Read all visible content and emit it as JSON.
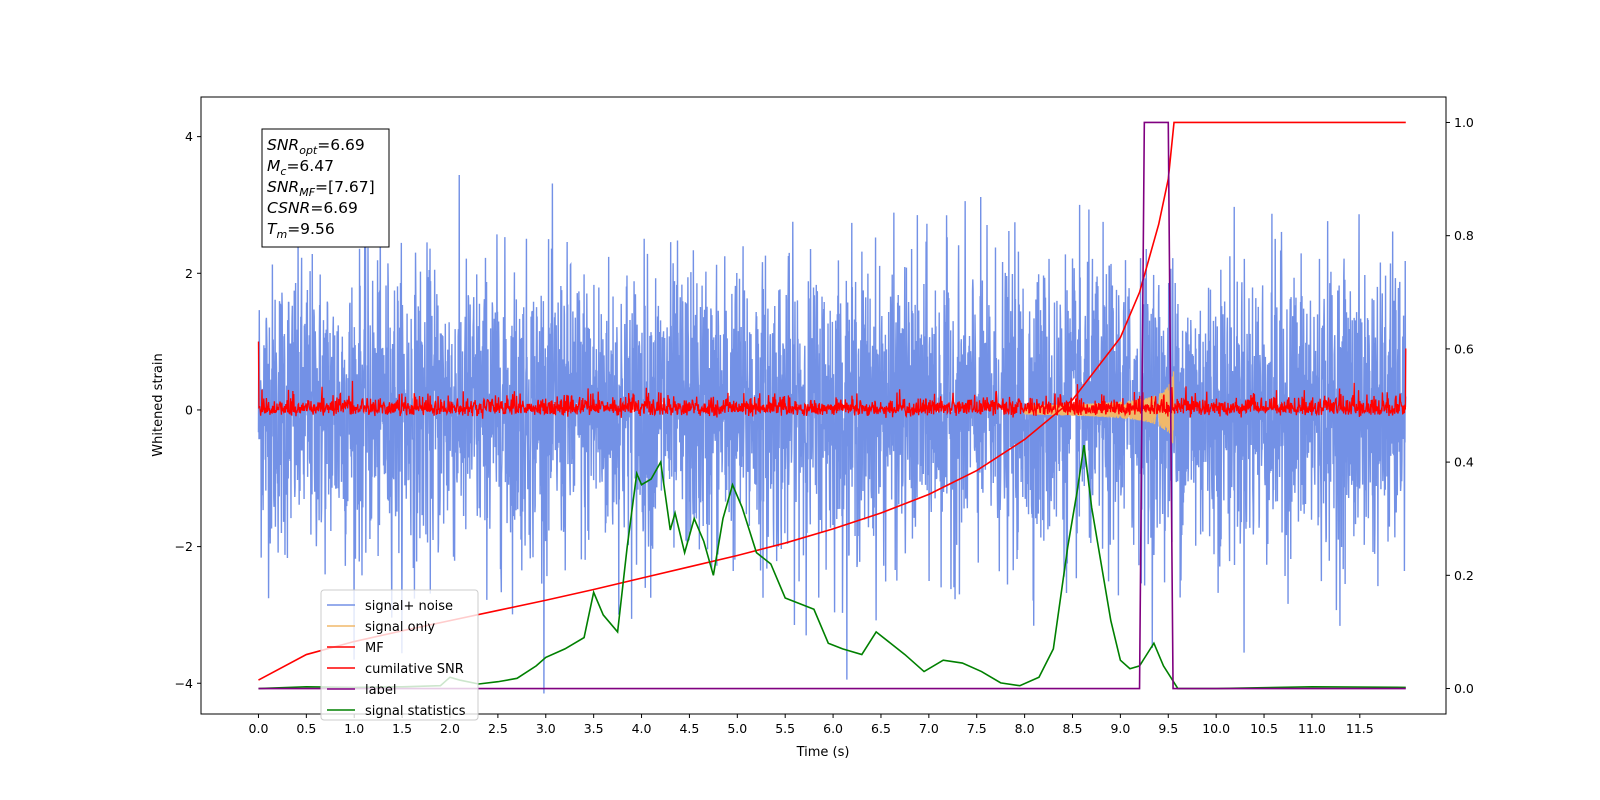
{
  "chart_data": {
    "type": "line",
    "xlabel": "Time (s)",
    "ylabel": "Whitened strain",
    "xlim": [
      -0.6,
      12.4
    ],
    "ylim": [
      -4.45,
      4.58
    ],
    "y2lim": [
      -0.045,
      1.045
    ],
    "xticks": [
      "0.0",
      "0.5",
      "1.0",
      "1.5",
      "2.0",
      "2.5",
      "3.0",
      "3.5",
      "4.0",
      "4.5",
      "5.0",
      "5.5",
      "6.0",
      "6.5",
      "7.0",
      "7.5",
      "8.0",
      "8.5",
      "9.0",
      "9.5",
      "10.0",
      "10.5",
      "11.0",
      "11.5"
    ],
    "yticks": [
      "−4",
      "−2",
      "0",
      "2",
      "4"
    ],
    "y2ticks": [
      "0.0",
      "0.2",
      "0.4",
      "0.6",
      "0.8",
      "1.0"
    ],
    "grid": false,
    "legend_position": "lower-left",
    "annotation": {
      "lines": [
        {
          "base": "SNR",
          "sub": "opt",
          "value": "=6.69"
        },
        {
          "base": "M",
          "sub": "c",
          "value": "=6.47"
        },
        {
          "base": "SNR",
          "sub": "MF",
          "value": "=[7.67]"
        },
        {
          "base": "CSNR",
          "sub": "",
          "value": "=6.69"
        },
        {
          "base": "T",
          "sub": "m",
          "value": "=9.56"
        }
      ]
    },
    "series": [
      {
        "name": "signal+ noise",
        "axis": "left",
        "color": "#7391e6",
        "kind": "noise",
        "std": 1.05,
        "spike_max": 4.15,
        "x_range": [
          0.0,
          11.98
        ]
      },
      {
        "name": "signal only",
        "axis": "left",
        "color": "#f0b86a",
        "kind": "chirp",
        "x_range": [
          8.0,
          9.56
        ],
        "peak_amplitude": 0.62
      },
      {
        "name": "MF",
        "axis": "left",
        "color": "#ff0000",
        "kind": "noise",
        "std": 0.12,
        "x_range": [
          0.0,
          11.98
        ],
        "edge_values": [
          1.0,
          0.9
        ]
      },
      {
        "name": "cumilative SNR",
        "axis": "right",
        "color": "#ff0000",
        "x": [
          0.0,
          0.5,
          1.0,
          1.5,
          2.0,
          2.5,
          3.0,
          3.5,
          4.0,
          4.5,
          5.0,
          5.5,
          6.0,
          6.5,
          7.0,
          7.5,
          8.0,
          8.5,
          9.0,
          9.2,
          9.4,
          9.5,
          9.56,
          10.0,
          11.0,
          11.98
        ],
        "y": [
          0.015,
          0.06,
          0.083,
          0.102,
          0.12,
          0.138,
          0.156,
          0.175,
          0.195,
          0.215,
          0.235,
          0.257,
          0.282,
          0.31,
          0.343,
          0.385,
          0.44,
          0.51,
          0.62,
          0.7,
          0.82,
          0.9,
          1.0,
          1.0,
          1.0,
          1.0
        ]
      },
      {
        "name": "label",
        "axis": "right",
        "color": "#800080",
        "x": [
          0.0,
          9.2,
          9.25,
          9.5,
          9.55,
          11.98
        ],
        "y": [
          0,
          0,
          1,
          1,
          0,
          0
        ]
      },
      {
        "name": "signal statistics",
        "axis": "right",
        "color": "#008000",
        "x": [
          0.0,
          0.5,
          1.0,
          1.5,
          1.9,
          2.0,
          2.1,
          2.3,
          2.5,
          2.7,
          2.9,
          3.0,
          3.2,
          3.4,
          3.5,
          3.6,
          3.75,
          3.85,
          3.95,
          4.0,
          4.1,
          4.2,
          4.3,
          4.35,
          4.45,
          4.55,
          4.65,
          4.75,
          4.85,
          4.95,
          5.05,
          5.2,
          5.35,
          5.5,
          5.65,
          5.8,
          5.95,
          6.1,
          6.3,
          6.45,
          6.6,
          6.75,
          6.95,
          7.15,
          7.35,
          7.55,
          7.75,
          7.95,
          8.15,
          8.3,
          8.45,
          8.55,
          8.62,
          8.7,
          8.8,
          8.9,
          9.0,
          9.1,
          9.2,
          9.35,
          9.45,
          9.6,
          10.0,
          11.0,
          11.98
        ],
        "y": [
          0.0,
          0.003,
          0.002,
          0.003,
          0.005,
          0.02,
          0.015,
          0.008,
          0.012,
          0.018,
          0.04,
          0.055,
          0.07,
          0.09,
          0.17,
          0.13,
          0.1,
          0.25,
          0.38,
          0.36,
          0.37,
          0.4,
          0.28,
          0.31,
          0.24,
          0.3,
          0.26,
          0.2,
          0.3,
          0.36,
          0.32,
          0.24,
          0.22,
          0.16,
          0.15,
          0.14,
          0.08,
          0.07,
          0.06,
          0.1,
          0.08,
          0.06,
          0.03,
          0.05,
          0.045,
          0.03,
          0.01,
          0.005,
          0.02,
          0.07,
          0.25,
          0.35,
          0.43,
          0.32,
          0.22,
          0.12,
          0.05,
          0.035,
          0.04,
          0.08,
          0.04,
          0.0,
          0.0,
          0.003,
          0.002
        ]
      }
    ]
  }
}
